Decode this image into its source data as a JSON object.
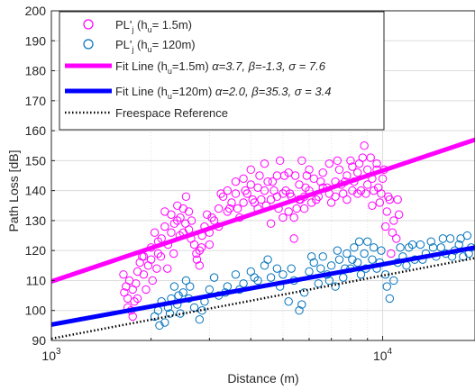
{
  "chart_data": {
    "type": "scatter",
    "title": "",
    "xlabel": "Distance (m)",
    "ylabel": "Path Loss [dB]",
    "xscale": "log",
    "xlim": [
      1000,
      19000
    ],
    "ylim": [
      90,
      200
    ],
    "grid": true,
    "legend_placement": "top-left",
    "x_ticks": [
      {
        "value": 1000,
        "base": "10",
        "exp": "3"
      },
      {
        "value": 10000,
        "base": "10",
        "exp": "4"
      }
    ],
    "y_ticks": [
      90,
      100,
      110,
      120,
      130,
      140,
      150,
      160,
      170,
      180,
      190,
      200
    ],
    "legend": [
      {
        "kind": "marker",
        "color": "#FF00FF",
        "text": "PL'",
        "sub": "j",
        "rest": " (h",
        "sub2": "u",
        "tail": "= 1.5m)"
      },
      {
        "kind": "marker",
        "color": "#0072BD",
        "text": "PL'",
        "sub": "j",
        "rest": " (h",
        "sub2": "u",
        "tail": "= 120m)"
      },
      {
        "kind": "line",
        "color": "#FF00FF",
        "text": "Fit Line (h",
        "sub": "u",
        "rest": "=1.5m) ",
        "params": "α=3.7, β=-1.3, σ = 7.6"
      },
      {
        "kind": "line",
        "color": "#0000FF",
        "text": "Fit Line (h",
        "sub": "u",
        "rest": "=120m) ",
        "params": "α=2.0, β=35.3, σ = 3.4"
      },
      {
        "kind": "dotted",
        "color": "#000000",
        "text": "Freespace Reference",
        "sub": "",
        "rest": "",
        "params": ""
      }
    ],
    "series": [
      {
        "name": "PL'j (hu= 1.5m)",
        "kind": "scatter",
        "color": "#FF00FF",
        "points": [
          [
            1650,
            112
          ],
          [
            1680,
            108
          ],
          [
            1700,
            104
          ],
          [
            1720,
            110
          ],
          [
            1740,
            100
          ],
          [
            1760,
            98
          ],
          [
            1780,
            103
          ],
          [
            1800,
            109
          ],
          [
            1820,
            113
          ],
          [
            1850,
            116
          ],
          [
            1880,
            118
          ],
          [
            1900,
            112
          ],
          [
            1930,
            107
          ],
          [
            1960,
            115
          ],
          [
            2000,
            121
          ],
          [
            2050,
            126
          ],
          [
            2100,
            119
          ],
          [
            2150,
            124
          ],
          [
            2200,
            128
          ],
          [
            2250,
            122
          ],
          [
            2300,
            132
          ],
          [
            2350,
            129
          ],
          [
            2400,
            135
          ],
          [
            2450,
            131
          ],
          [
            2500,
            126
          ],
          [
            2550,
            138
          ],
          [
            2600,
            133
          ],
          [
            2650,
            130
          ],
          [
            2700,
            122
          ],
          [
            2750,
            117
          ],
          [
            2800,
            120
          ],
          [
            2850,
            125
          ],
          [
            2900,
            128
          ],
          [
            2950,
            132
          ],
          [
            3000,
            126
          ],
          [
            3100,
            130
          ],
          [
            3200,
            134
          ],
          [
            3300,
            138
          ],
          [
            3400,
            140
          ],
          [
            3500,
            136
          ],
          [
            3600,
            139
          ],
          [
            3700,
            131
          ],
          [
            3800,
            144
          ],
          [
            3900,
            139
          ],
          [
            4000,
            142
          ],
          [
            4100,
            136
          ],
          [
            4200,
            141
          ],
          [
            4300,
            137
          ],
          [
            4400,
            149
          ],
          [
            4500,
            143
          ],
          [
            4600,
            129
          ],
          [
            4700,
            140
          ],
          [
            4800,
            138
          ],
          [
            4900,
            150
          ],
          [
            5000,
            131
          ],
          [
            5100,
            140
          ],
          [
            5200,
            133
          ],
          [
            5300,
            138
          ],
          [
            5400,
            124
          ],
          [
            5500,
            134
          ],
          [
            5600,
            142
          ],
          [
            5700,
            150
          ],
          [
            5800,
            138
          ],
          [
            5900,
            145
          ],
          [
            6000,
            140
          ],
          [
            6200,
            144
          ],
          [
            6400,
            138
          ],
          [
            6600,
            146
          ],
          [
            6800,
            141
          ],
          [
            7000,
            136
          ],
          [
            7200,
            143
          ],
          [
            7400,
            147
          ],
          [
            7600,
            139
          ],
          [
            7800,
            145
          ],
          [
            8000,
            150
          ],
          [
            8200,
            143
          ],
          [
            8400,
            146
          ],
          [
            8600,
            140
          ],
          [
            8800,
            155
          ],
          [
            9000,
            142
          ],
          [
            9200,
            151
          ],
          [
            9400,
            140
          ],
          [
            9600,
            147
          ],
          [
            9800,
            136
          ],
          [
            10000,
            144
          ],
          [
            10200,
            128
          ],
          [
            10400,
            138
          ],
          [
            10600,
            119
          ],
          [
            10800,
            130
          ],
          [
            11000,
            124
          ],
          [
            11200,
            132
          ],
          [
            1660,
            106
          ],
          [
            1700,
            101
          ],
          [
            1760,
            107
          ],
          [
            1820,
            104
          ],
          [
            1900,
            118
          ],
          [
            2000,
            117
          ],
          [
            2100,
            123
          ],
          [
            2200,
            133
          ],
          [
            2300,
            126
          ],
          [
            2400,
            130
          ],
          [
            2500,
            134
          ],
          [
            2600,
            127
          ],
          [
            2800,
            115
          ],
          [
            3000,
            122
          ],
          [
            3200,
            128
          ],
          [
            3400,
            133
          ],
          [
            3600,
            143
          ],
          [
            3800,
            136
          ],
          [
            4000,
            147
          ],
          [
            4200,
            134
          ],
          [
            4400,
            140
          ],
          [
            4600,
            137
          ],
          [
            4800,
            145
          ],
          [
            5000,
            139
          ],
          [
            5200,
            146
          ],
          [
            5400,
            131
          ],
          [
            5600,
            137
          ],
          [
            5800,
            134
          ],
          [
            6000,
            147
          ],
          [
            6300,
            137
          ],
          [
            6600,
            141
          ],
          [
            6900,
            149
          ],
          [
            7200,
            138
          ],
          [
            7500,
            142
          ],
          [
            7800,
            137
          ],
          [
            8100,
            148
          ],
          [
            8400,
            139
          ],
          [
            8700,
            151
          ],
          [
            9000,
            147
          ],
          [
            9300,
            135
          ],
          [
            9600,
            149
          ],
          [
            9900,
            139
          ],
          [
            10300,
            133
          ],
          [
            10700,
            126
          ],
          [
            11100,
            137
          ],
          [
            2020,
            110
          ],
          [
            2080,
            114
          ],
          [
            2140,
            118
          ],
          [
            2240,
            114
          ],
          [
            2340,
            119
          ],
          [
            2440,
            125
          ],
          [
            2540,
            129
          ],
          [
            2640,
            124
          ],
          [
            2740,
            119
          ],
          [
            2840,
            121
          ],
          [
            3050,
            131
          ],
          [
            3250,
            139
          ],
          [
            3450,
            134
          ],
          [
            3650,
            134
          ],
          [
            3850,
            140
          ],
          [
            4050,
            137
          ],
          [
            4250,
            145
          ],
          [
            4450,
            135
          ],
          [
            4650,
            143
          ],
          [
            4850,
            134
          ],
          [
            5050,
            145
          ],
          [
            5250,
            139
          ],
          [
            5450,
            145
          ],
          [
            5650,
            137
          ],
          [
            5850,
            141
          ],
          [
            6100,
            136
          ],
          [
            6500,
            143
          ],
          [
            6900,
            139
          ],
          [
            7300,
            150
          ],
          [
            7700,
            143
          ],
          [
            8100,
            140
          ],
          [
            8500,
            149
          ],
          [
            8900,
            139
          ],
          [
            9300,
            144
          ],
          [
            9700,
            141
          ],
          [
            10100,
            147
          ],
          [
            10500,
            137
          ]
        ]
      },
      {
        "name": "PL'j (hu= 120m)",
        "kind": "scatter",
        "color": "#0072BD",
        "points": [
          [
            2050,
            98
          ],
          [
            2100,
            100
          ],
          [
            2150,
            103
          ],
          [
            2200,
            96
          ],
          [
            2250,
            101
          ],
          [
            2300,
            104
          ],
          [
            2350,
            108
          ],
          [
            2400,
            102
          ],
          [
            2450,
            99
          ],
          [
            2500,
            106
          ],
          [
            2550,
            110
          ],
          [
            2600,
            104
          ],
          [
            2700,
            101
          ],
          [
            2800,
            97
          ],
          [
            2900,
            103
          ],
          [
            3000,
            107
          ],
          [
            3200,
            105
          ],
          [
            3400,
            108
          ],
          [
            3600,
            112
          ],
          [
            3800,
            109
          ],
          [
            4000,
            113
          ],
          [
            4200,
            110
          ],
          [
            4400,
            115
          ],
          [
            4600,
            111
          ],
          [
            4800,
            114
          ],
          [
            5000,
            112
          ],
          [
            5200,
            103
          ],
          [
            5400,
            110
          ],
          [
            5600,
            100
          ],
          [
            5800,
            106
          ],
          [
            6000,
            113
          ],
          [
            6200,
            116
          ],
          [
            6400,
            109
          ],
          [
            6600,
            118
          ],
          [
            6800,
            112
          ],
          [
            7000,
            115
          ],
          [
            7200,
            108
          ],
          [
            7400,
            117
          ],
          [
            7600,
            111
          ],
          [
            7800,
            119
          ],
          [
            8000,
            114
          ],
          [
            8200,
            121
          ],
          [
            8400,
            116
          ],
          [
            8600,
            112
          ],
          [
            8800,
            119
          ],
          [
            9000,
            123
          ],
          [
            9300,
            117
          ],
          [
            9600,
            114
          ],
          [
            9900,
            120
          ],
          [
            10200,
            112
          ],
          [
            10500,
            104
          ],
          [
            10800,
            110
          ],
          [
            11100,
            116
          ],
          [
            11500,
            118
          ],
          [
            12000,
            121
          ],
          [
            12500,
            117
          ],
          [
            13000,
            122
          ],
          [
            13500,
            119
          ],
          [
            14000,
            123
          ],
          [
            14500,
            118
          ],
          [
            15000,
            121
          ],
          [
            15500,
            119
          ],
          [
            16000,
            124
          ],
          [
            16500,
            120
          ],
          [
            17000,
            122
          ],
          [
            17500,
            118
          ],
          [
            18000,
            125
          ],
          [
            18500,
            121
          ],
          [
            2120,
            95
          ],
          [
            2280,
            99
          ],
          [
            2420,
            105
          ],
          [
            2620,
            108
          ],
          [
            2850,
            100
          ],
          [
            3100,
            111
          ],
          [
            3350,
            106
          ],
          [
            3700,
            107
          ],
          [
            4100,
            111
          ],
          [
            4500,
            117
          ],
          [
            4900,
            108
          ],
          [
            5300,
            114
          ],
          [
            5700,
            102
          ],
          [
            6100,
            118
          ],
          [
            6500,
            114
          ],
          [
            6900,
            110
          ],
          [
            7300,
            120
          ],
          [
            7700,
            114
          ],
          [
            8100,
            117
          ],
          [
            8500,
            123
          ],
          [
            8900,
            114
          ],
          [
            9400,
            121
          ],
          [
            9800,
            116
          ],
          [
            10300,
            108
          ],
          [
            11300,
            121
          ],
          [
            11800,
            115
          ],
          [
            12300,
            122
          ],
          [
            13200,
            117
          ],
          [
            14200,
            121
          ],
          [
            15200,
            124
          ],
          [
            16200,
            118
          ],
          [
            17200,
            124
          ],
          [
            18200,
            119
          ]
        ]
      },
      {
        "name": "Fit Line (hu=1.5m) α=3.7, β=-1.3, σ = 7.6",
        "kind": "line",
        "color": "#FF00FF",
        "x": [
          1000,
          19000
        ],
        "y": [
          109.7,
          157.0
        ]
      },
      {
        "name": "Fit Line (hu=120m) α=2.0, β=35.3, σ = 3.4",
        "kind": "line",
        "color": "#0000FF",
        "x": [
          1000,
          19000
        ],
        "y": [
          95.3,
          121.0
        ]
      },
      {
        "name": "Freespace Reference",
        "kind": "dotted",
        "color": "#000000",
        "x": [
          1000,
          19000
        ],
        "y": [
          90.6,
          117.5
        ]
      }
    ]
  }
}
